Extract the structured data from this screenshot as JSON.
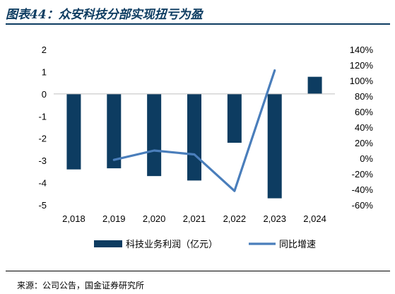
{
  "header": {
    "title": "图表44：众安科技分部实现扭亏为盈"
  },
  "footer": {
    "source": "来源：公司公告，国金证券研究所"
  },
  "colors": {
    "bar": "#0d3c61",
    "line": "#4a7ebb",
    "title": "#0d3c61"
  },
  "chart_data": {
    "type": "bar",
    "categories": [
      "2,018",
      "2,019",
      "2,020",
      "2,021",
      "2,022",
      "2,023",
      "2,024"
    ],
    "series": [
      {
        "name": "科技业务利润（亿元）",
        "type": "bar",
        "axis": "left",
        "values": [
          -3.4,
          -3.35,
          -3.7,
          -3.9,
          -2.2,
          -4.7,
          0.77
        ]
      },
      {
        "name": "同比增速",
        "type": "line",
        "axis": "right",
        "values": [
          null,
          -0.02,
          0.1,
          0.05,
          -0.42,
          1.13,
          null
        ]
      }
    ],
    "y_left": {
      "min": -5,
      "max": 2,
      "ticks": [
        2,
        1,
        0,
        -1,
        -2,
        -3,
        -4,
        -5
      ]
    },
    "y_right": {
      "min": -0.6,
      "max": 1.4,
      "ticks": [
        "140%",
        "120%",
        "100%",
        "80%",
        "60%",
        "40%",
        "20%",
        "0%",
        "-20%",
        "-40%",
        "-60%"
      ]
    },
    "legend_position": "bottom"
  }
}
